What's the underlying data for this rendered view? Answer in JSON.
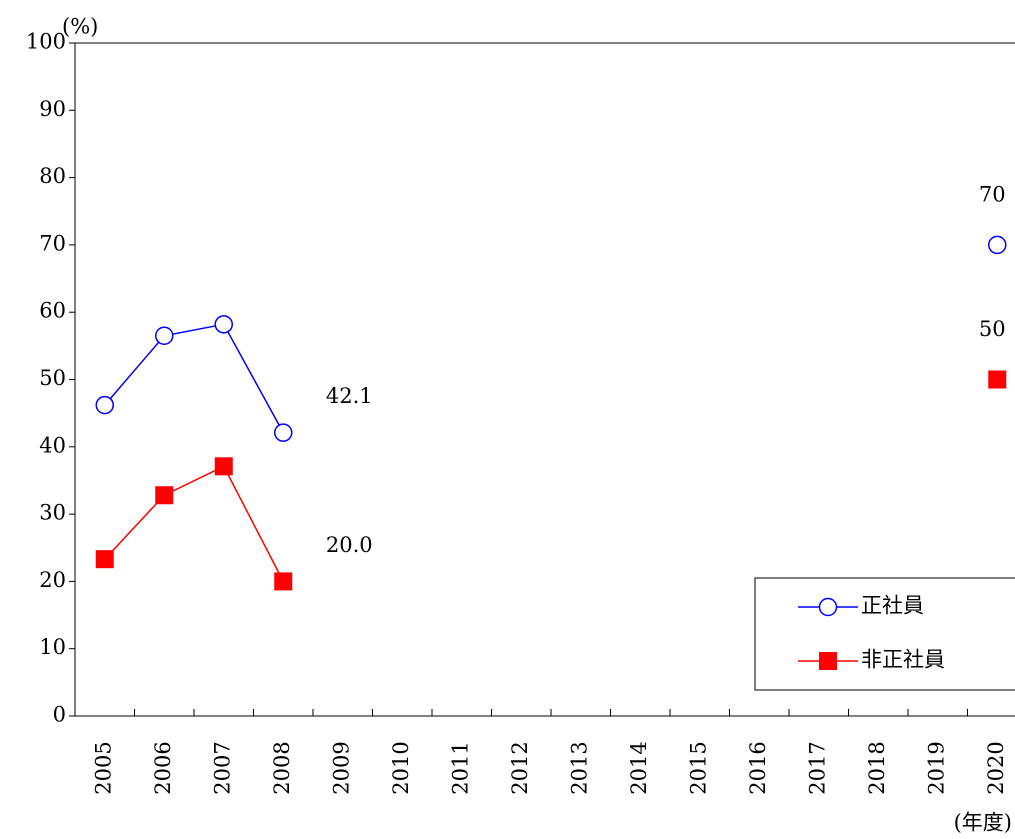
{
  "chart_data": {
    "type": "line",
    "y_label": "(%)",
    "x_label": "(年度)",
    "categories": [
      "2005",
      "2006",
      "2007",
      "2008",
      "2009",
      "2010",
      "2011",
      "2012",
      "2013",
      "2014",
      "2015",
      "2016",
      "2017",
      "2018",
      "2019",
      "2020"
    ],
    "series": [
      {
        "name": "正社員",
        "color": "#0000ff",
        "marker": "circle",
        "values": [
          46.2,
          56.5,
          58.2,
          42.1,
          null,
          null,
          null,
          null,
          null,
          null,
          null,
          null,
          null,
          null,
          null,
          70
        ],
        "value_labels": [
          null,
          null,
          null,
          "42.1",
          null,
          null,
          null,
          null,
          null,
          null,
          null,
          null,
          null,
          null,
          null,
          "70"
        ]
      },
      {
        "name": "非正社員",
        "color": "#ff0000",
        "marker": "square",
        "values": [
          23.3,
          32.8,
          37.1,
          20.0,
          null,
          null,
          null,
          null,
          null,
          null,
          null,
          null,
          null,
          null,
          null,
          50
        ],
        "value_labels": [
          null,
          null,
          null,
          "20.0",
          null,
          null,
          null,
          null,
          null,
          null,
          null,
          null,
          null,
          null,
          null,
          "50"
        ]
      }
    ],
    "ylim": [
      0,
      100
    ],
    "yticks": [
      0,
      10,
      20,
      30,
      40,
      50,
      60,
      70,
      80,
      90,
      100
    ],
    "legend": "lower right"
  }
}
